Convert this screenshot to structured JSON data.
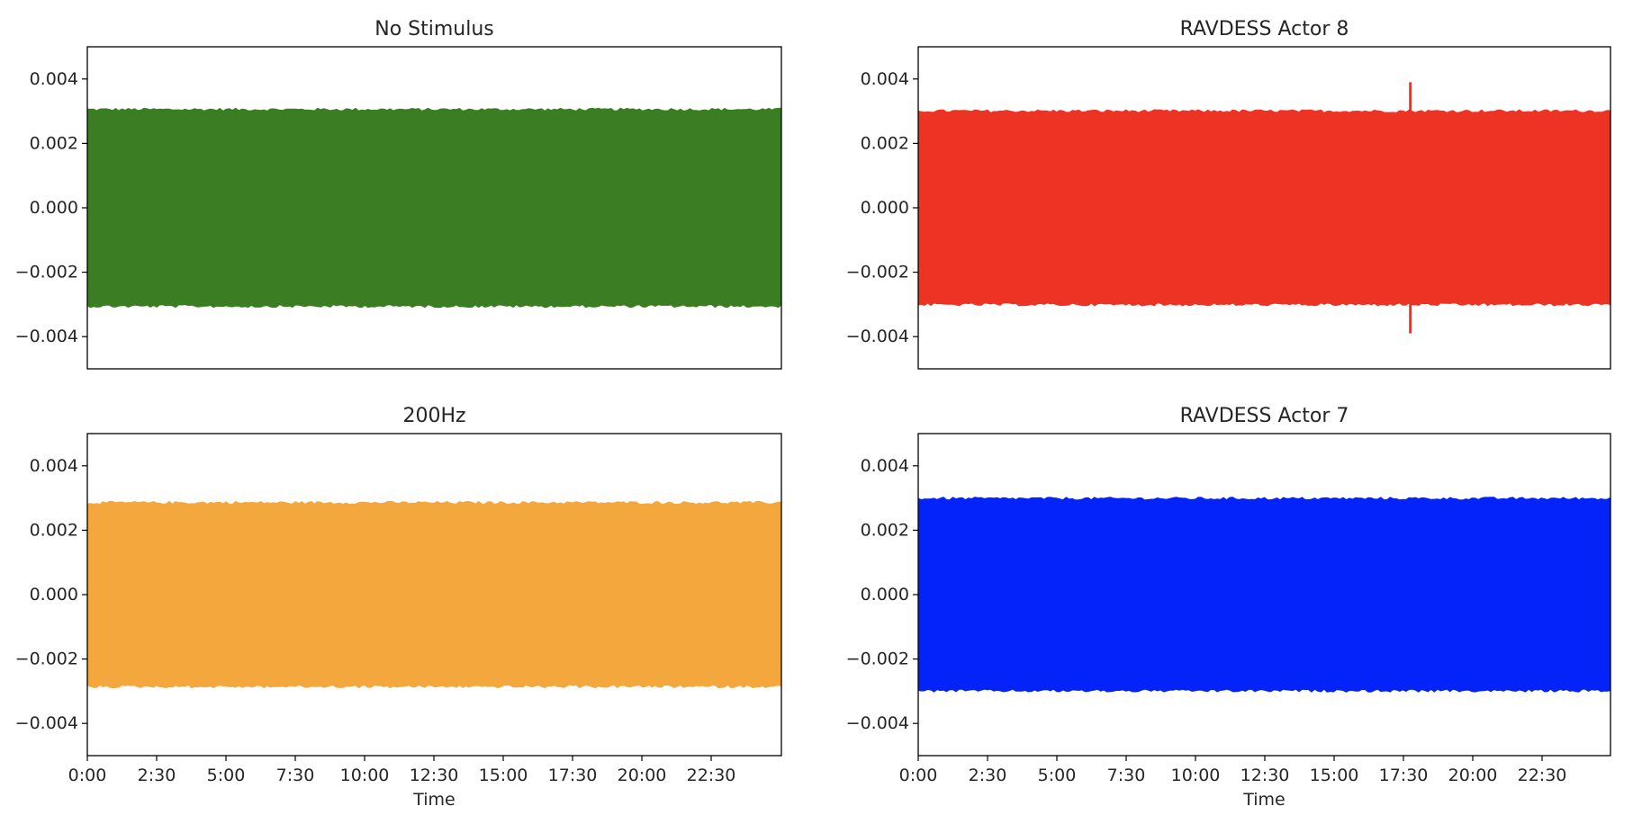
{
  "chart_data": [
    {
      "type": "area",
      "title": "No Stimulus",
      "color": "#3a7d23",
      "amplitude": 0.00305,
      "y_ticks": [
        0.004,
        0.002,
        0.0,
        -0.002,
        -0.004
      ],
      "y_tick_labels": [
        "0.004",
        "0.002",
        "0.000",
        "−0.002",
        "−0.004"
      ],
      "ylim": [
        -0.005,
        0.005
      ],
      "xlabel": "",
      "x_tick_labels": []
    },
    {
      "type": "area",
      "title": "RAVDESS Actor 8",
      "color": "#ec3324",
      "amplitude": 0.003,
      "spike": {
        "x": "17:45",
        "amplitude": 0.0039
      },
      "y_ticks": [
        0.004,
        0.002,
        0.0,
        -0.002,
        -0.004
      ],
      "y_tick_labels": [
        "0.004",
        "0.002",
        "0.000",
        "−0.002",
        "−0.004"
      ],
      "ylim": [
        -0.005,
        0.005
      ],
      "xlabel": "",
      "x_tick_labels": []
    },
    {
      "type": "area",
      "title": "200Hz",
      "color": "#f3a73d",
      "amplitude": 0.00285,
      "y_ticks": [
        0.004,
        0.002,
        0.0,
        -0.002,
        -0.004
      ],
      "y_tick_labels": [
        "0.004",
        "0.002",
        "0.000",
        "−0.002",
        "−0.004"
      ],
      "ylim": [
        -0.005,
        0.005
      ],
      "xlabel": "Time",
      "x_tick_labels": [
        "0:00",
        "2:30",
        "5:00",
        "7:30",
        "10:00",
        "12:30",
        "15:00",
        "17:30",
        "20:00",
        "22:30"
      ]
    },
    {
      "type": "area",
      "title": "RAVDESS Actor 7",
      "color": "#0323f8",
      "amplitude": 0.00298,
      "y_ticks": [
        0.004,
        0.002,
        0.0,
        -0.002,
        -0.004
      ],
      "y_tick_labels": [
        "0.004",
        "0.002",
        "0.000",
        "−0.002",
        "−0.004"
      ],
      "ylim": [
        -0.005,
        0.005
      ],
      "xlabel": "Time",
      "x_tick_labels": [
        "0:00",
        "2:30",
        "5:00",
        "7:30",
        "10:00",
        "12:30",
        "15:00",
        "17:30",
        "20:00",
        "22:30"
      ]
    }
  ]
}
